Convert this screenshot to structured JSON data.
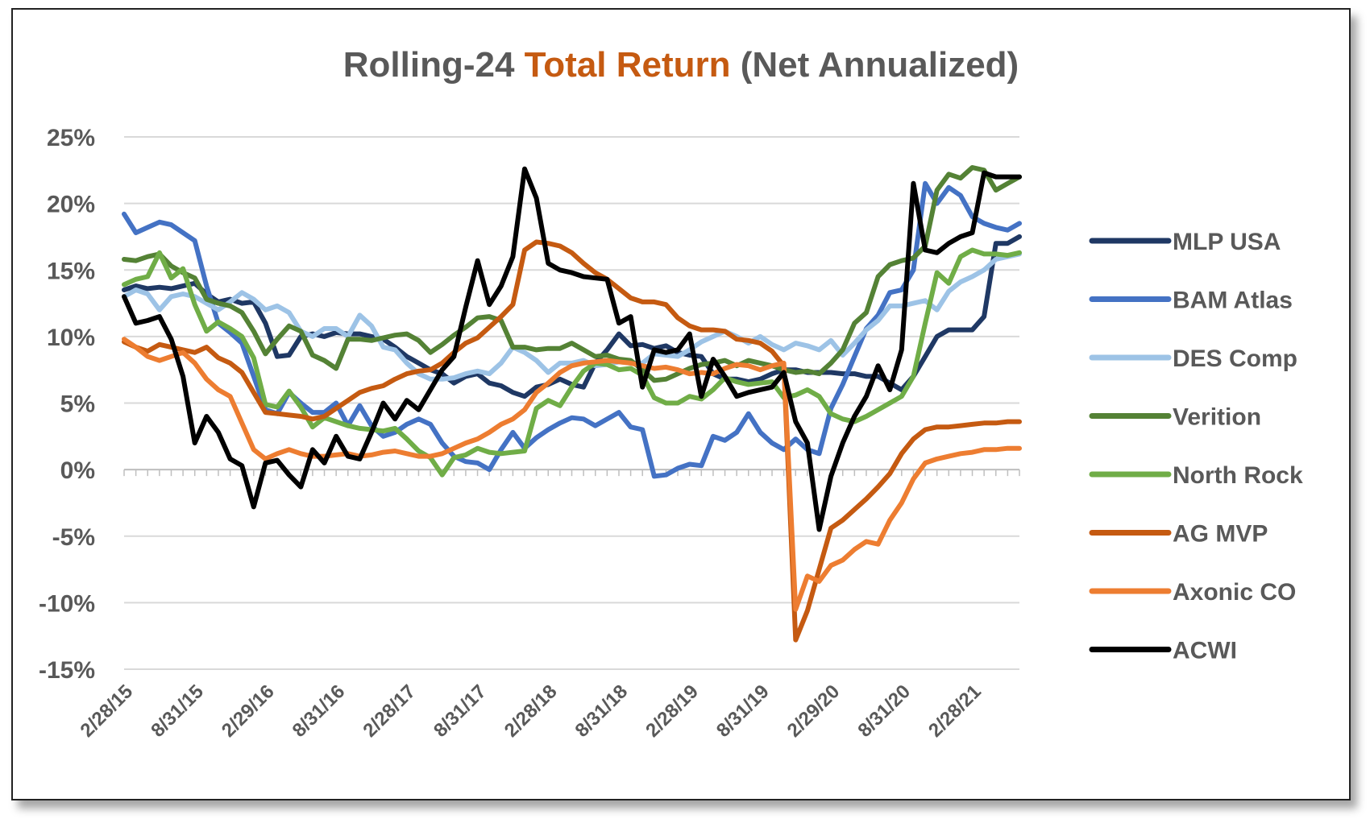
{
  "chart_data": {
    "type": "line",
    "title_parts": [
      {
        "text": "Rolling-24 ",
        "color": "#595959"
      },
      {
        "text": "Total Return",
        "color": "#C55A11"
      },
      {
        "text": " (Net Annualized)",
        "color": "#595959"
      }
    ],
    "title": "Rolling-24 Total Return (Net Annualized)",
    "xlabel": "",
    "ylabel": "",
    "ylim": [
      -15,
      25
    ],
    "yticks": [
      25,
      20,
      15,
      10,
      5,
      0,
      -5,
      -10,
      -15
    ],
    "ytick_labels": [
      "25%",
      "20%",
      "15%",
      "10%",
      "5%",
      "0%",
      "-5%",
      "-10%",
      "-15%"
    ],
    "x_tick_labels": [
      "2/28/15",
      "8/31/15",
      "2/29/16",
      "8/31/16",
      "2/28/17",
      "8/31/17",
      "2/28/18",
      "8/31/18",
      "2/28/19",
      "8/31/19",
      "2/29/20",
      "8/31/20",
      "2/28/21"
    ],
    "x_tick_every_months": 6,
    "num_points": 77,
    "grid": true,
    "legend_position": "right",
    "series": [
      {
        "name": "MLP USA",
        "color": "#1F3864",
        "values": [
          13.5,
          13.8,
          13.6,
          13.7,
          13.6,
          13.8,
          14.0,
          13.2,
          12.6,
          12.8,
          12.5,
          12.6,
          11.0,
          8.5,
          8.6,
          10.0,
          10.2,
          10.0,
          10.3,
          10.2,
          10.2,
          10.0,
          9.8,
          9.2,
          8.5,
          8.0,
          7.5,
          7.2,
          6.5,
          7.0,
          7.2,
          6.5,
          6.3,
          5.8,
          5.5,
          6.2,
          6.4,
          6.8,
          6.4,
          6.2,
          8.0,
          9.0,
          10.2,
          9.3,
          9.4,
          9.1,
          9.3,
          8.8,
          8.6,
          8.5,
          7.2,
          6.8,
          6.8,
          6.6,
          6.8,
          7.2,
          7.5,
          7.5,
          7.3,
          7.3,
          7.3,
          7.2,
          7.2,
          7.0,
          7.0,
          6.5,
          6.0,
          7.0,
          8.5,
          10.0,
          10.5,
          10.5,
          10.5,
          11.5,
          17.0,
          17.0,
          17.5
        ]
      },
      {
        "name": "BAM Atlas",
        "color": "#4472C4",
        "values": [
          19.2,
          17.8,
          18.2,
          18.6,
          18.4,
          17.8,
          17.2,
          13.8,
          11.0,
          10.3,
          9.5,
          7.0,
          4.5,
          4.2,
          5.8,
          5.0,
          4.3,
          4.3,
          5.0,
          3.3,
          4.8,
          3.3,
          2.5,
          2.8,
          3.4,
          3.8,
          3.4,
          2.0,
          1.0,
          0.6,
          0.5,
          0.0,
          1.5,
          2.8,
          1.6,
          2.4,
          3.0,
          3.5,
          3.9,
          3.8,
          3.3,
          3.8,
          4.3,
          3.2,
          3.0,
          -0.5,
          -0.4,
          0.1,
          0.4,
          0.3,
          2.5,
          2.2,
          2.8,
          4.2,
          2.8,
          2.0,
          1.5,
          2.3,
          1.5,
          1.2,
          4.6,
          6.4,
          8.5,
          10.6,
          11.6,
          13.3,
          13.5,
          15.0,
          21.5,
          20.0,
          21.2,
          20.6,
          19.0,
          18.5,
          18.2,
          18.0,
          18.5
        ]
      },
      {
        "name": "DES Comp",
        "color": "#9DC3E6",
        "values": [
          13.0,
          13.5,
          13.2,
          12.0,
          13.0,
          13.2,
          13.0,
          12.5,
          12.0,
          12.6,
          13.3,
          12.8,
          12.0,
          12.3,
          11.8,
          10.4,
          10.0,
          10.6,
          10.6,
          10.0,
          11.6,
          10.8,
          9.2,
          9.0,
          8.0,
          7.2,
          6.8,
          6.8,
          6.9,
          7.2,
          7.4,
          7.2,
          8.0,
          9.2,
          8.8,
          8.2,
          7.3,
          8.0,
          8.0,
          8.2,
          7.8,
          7.9,
          8.1,
          8.0,
          8.0,
          8.7,
          8.6,
          8.5,
          9.0,
          9.6,
          10.0,
          10.4,
          10.0,
          9.5,
          10.0,
          9.4,
          9.0,
          9.5,
          9.3,
          9.0,
          9.7,
          8.6,
          9.5,
          10.5,
          11.2,
          12.3,
          12.3,
          12.5,
          12.7,
          12.0,
          13.4,
          14.1,
          14.5,
          15.0,
          15.8,
          16.0,
          16.2
        ]
      },
      {
        "name": "Verition",
        "color": "#548235",
        "values": [
          15.8,
          15.7,
          16.0,
          16.2,
          15.3,
          14.8,
          14.4,
          12.8,
          12.5,
          12.3,
          11.8,
          10.4,
          8.7,
          9.8,
          10.8,
          10.4,
          8.6,
          8.2,
          7.6,
          9.8,
          9.8,
          9.7,
          9.9,
          10.1,
          10.2,
          9.7,
          8.8,
          9.4,
          10.1,
          10.7,
          11.4,
          11.5,
          11.2,
          9.2,
          9.2,
          9.0,
          9.1,
          9.1,
          9.5,
          9.0,
          8.5,
          8.6,
          8.3,
          8.2,
          7.5,
          6.7,
          6.8,
          7.2,
          7.6,
          7.9,
          8.0,
          8.2,
          7.8,
          8.2,
          8.0,
          7.8,
          7.5,
          7.3,
          7.4,
          7.2,
          8.0,
          9.0,
          11.0,
          11.8,
          14.5,
          15.4,
          15.7,
          15.9,
          16.8,
          21.0,
          22.2,
          21.9,
          22.7,
          22.5,
          21.0,
          21.5,
          22.0
        ]
      },
      {
        "name": "North Rock",
        "color": "#70AD47",
        "values": [
          13.9,
          14.3,
          14.5,
          16.3,
          14.4,
          15.1,
          12.4,
          10.4,
          11.1,
          10.6,
          10.0,
          8.4,
          4.9,
          4.7,
          5.9,
          4.7,
          3.2,
          3.9,
          3.6,
          3.3,
          3.1,
          3.0,
          2.9,
          3.1,
          2.3,
          1.4,
          0.9,
          -0.4,
          0.9,
          1.1,
          1.6,
          1.3,
          1.2,
          1.3,
          1.4,
          4.6,
          5.2,
          4.8,
          6.2,
          7.4,
          8.0,
          7.9,
          7.5,
          7.6,
          7.1,
          5.4,
          5.0,
          5.0,
          5.5,
          5.3,
          6.0,
          6.9,
          6.6,
          6.4,
          6.5,
          6.6,
          5.4,
          5.6,
          6.0,
          5.5,
          4.2,
          3.8,
          3.6,
          4.0,
          4.5,
          5.0,
          5.5,
          7.0,
          11.0,
          14.8,
          14.0,
          16.0,
          16.5,
          16.2,
          16.2,
          16.1,
          16.3
        ]
      },
      {
        "name": "AG MVP",
        "color": "#C55A11",
        "values": [
          9.6,
          9.2,
          8.9,
          9.4,
          9.2,
          9.0,
          8.8,
          9.2,
          8.4,
          8.0,
          7.3,
          5.8,
          4.3,
          4.2,
          4.1,
          4.0,
          3.8,
          4.0,
          4.6,
          5.2,
          5.8,
          6.1,
          6.3,
          6.8,
          7.2,
          7.4,
          7.5,
          8.0,
          8.8,
          9.5,
          9.9,
          10.7,
          11.5,
          12.4,
          16.5,
          17.1,
          17.0,
          16.8,
          16.3,
          15.5,
          14.8,
          14.3,
          13.6,
          12.9,
          12.6,
          12.6,
          12.4,
          11.4,
          10.8,
          10.5,
          10.5,
          10.4,
          9.8,
          9.7,
          9.5,
          8.9,
          7.8,
          -12.8,
          -10.6,
          -7.5,
          -4.4,
          -3.8,
          -3.0,
          -2.2,
          -1.3,
          -0.3,
          1.2,
          2.3,
          3.0,
          3.2,
          3.2,
          3.3,
          3.4,
          3.5,
          3.5,
          3.6,
          3.6
        ]
      },
      {
        "name": "Axonic CO",
        "color": "#ED7D31",
        "values": [
          9.8,
          9.2,
          8.5,
          8.2,
          8.5,
          8.8,
          8.0,
          6.8,
          6.0,
          5.5,
          3.5,
          1.5,
          0.8,
          1.2,
          1.5,
          1.2,
          1.0,
          1.0,
          1.1,
          1.2,
          1.0,
          1.1,
          1.3,
          1.4,
          1.2,
          1.0,
          1.0,
          1.2,
          1.6,
          2.0,
          2.3,
          2.8,
          3.4,
          3.8,
          4.5,
          5.8,
          6.5,
          7.3,
          7.8,
          8.0,
          8.1,
          8.2,
          8.1,
          8.0,
          7.8,
          7.6,
          7.7,
          7.5,
          7.2,
          7.3,
          7.2,
          7.6,
          7.9,
          7.8,
          7.5,
          7.8,
          8.0,
          -10.5,
          -8.0,
          -8.4,
          -7.2,
          -6.8,
          -6.0,
          -5.4,
          -5.6,
          -3.8,
          -2.5,
          -0.7,
          0.5,
          0.8,
          1.0,
          1.2,
          1.3,
          1.5,
          1.5,
          1.6,
          1.6
        ]
      },
      {
        "name": "ACWI",
        "color": "#000000",
        "values": [
          13.0,
          11.0,
          11.2,
          11.5,
          9.8,
          7.0,
          2.0,
          4.0,
          2.8,
          0.8,
          0.3,
          -2.8,
          0.5,
          0.7,
          -0.4,
          -1.3,
          1.5,
          0.5,
          2.5,
          1.0,
          0.8,
          2.8,
          5.0,
          3.8,
          5.2,
          4.5,
          6.0,
          7.5,
          8.5,
          12.2,
          15.7,
          12.4,
          13.8,
          16.0,
          22.6,
          20.4,
          15.5,
          15.0,
          14.8,
          14.5,
          14.4,
          14.3,
          11.0,
          11.5,
          6.2,
          9.0,
          8.8,
          9.0,
          10.2,
          5.5,
          8.3,
          7.0,
          5.5,
          5.8,
          6.0,
          6.2,
          7.3,
          3.6,
          2.0,
          -4.5,
          -0.5,
          2.0,
          4.0,
          5.5,
          7.8,
          6.0,
          9.0,
          21.5,
          16.5,
          16.3,
          17.0,
          17.5,
          17.8,
          22.3,
          22.0,
          22.0,
          22.0
        ]
      }
    ]
  }
}
